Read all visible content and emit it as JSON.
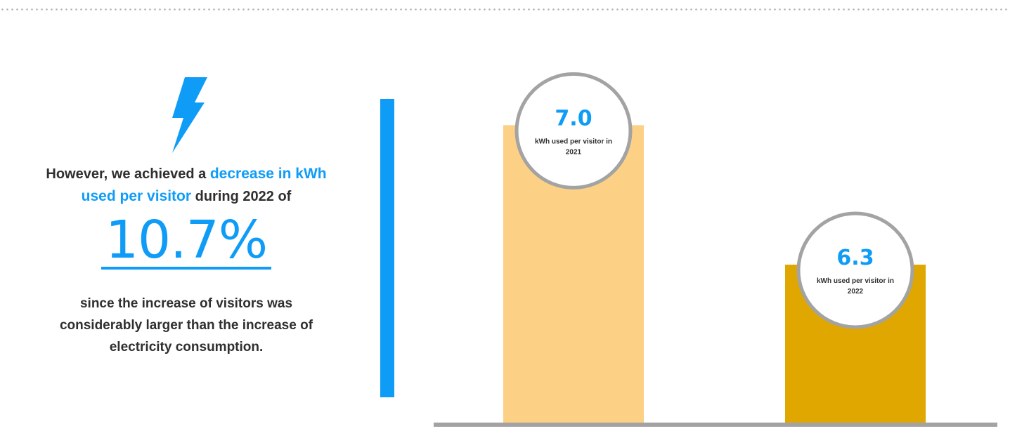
{
  "left_panel": {
    "icon": "lightning-bolt-icon",
    "intro_prefix": "However, we achieved a",
    "intro_highlight": "decrease in kWh used per visitor",
    "intro_suffix": "during 2022 of",
    "big_percent": "10.7%",
    "outro": "since the increase of visitors was considerably larger than the increase of electricity consumption."
  },
  "colors": {
    "accent": "#0f9cf7",
    "bar_2021": "#fdd185",
    "bar_2022": "#e0a700",
    "circle_border": "#a3a3a3",
    "axis": "#a3a3a3",
    "text": "#2f2f2f"
  },
  "chart_data": {
    "type": "bar",
    "categories": [
      "2021",
      "2022"
    ],
    "values": [
      7.0,
      6.3
    ],
    "value_labels": [
      "7.0",
      "6.3"
    ],
    "bar_captions": [
      "kWh used per visitor in 2021",
      "kWh used per visitor in 2022"
    ],
    "bar_colors": [
      "#fdd185",
      "#e0a700"
    ],
    "ylim": [
      5.5,
      7.1
    ],
    "grid": false,
    "legend": "none",
    "title": "",
    "xlabel": "",
    "ylabel": ""
  }
}
